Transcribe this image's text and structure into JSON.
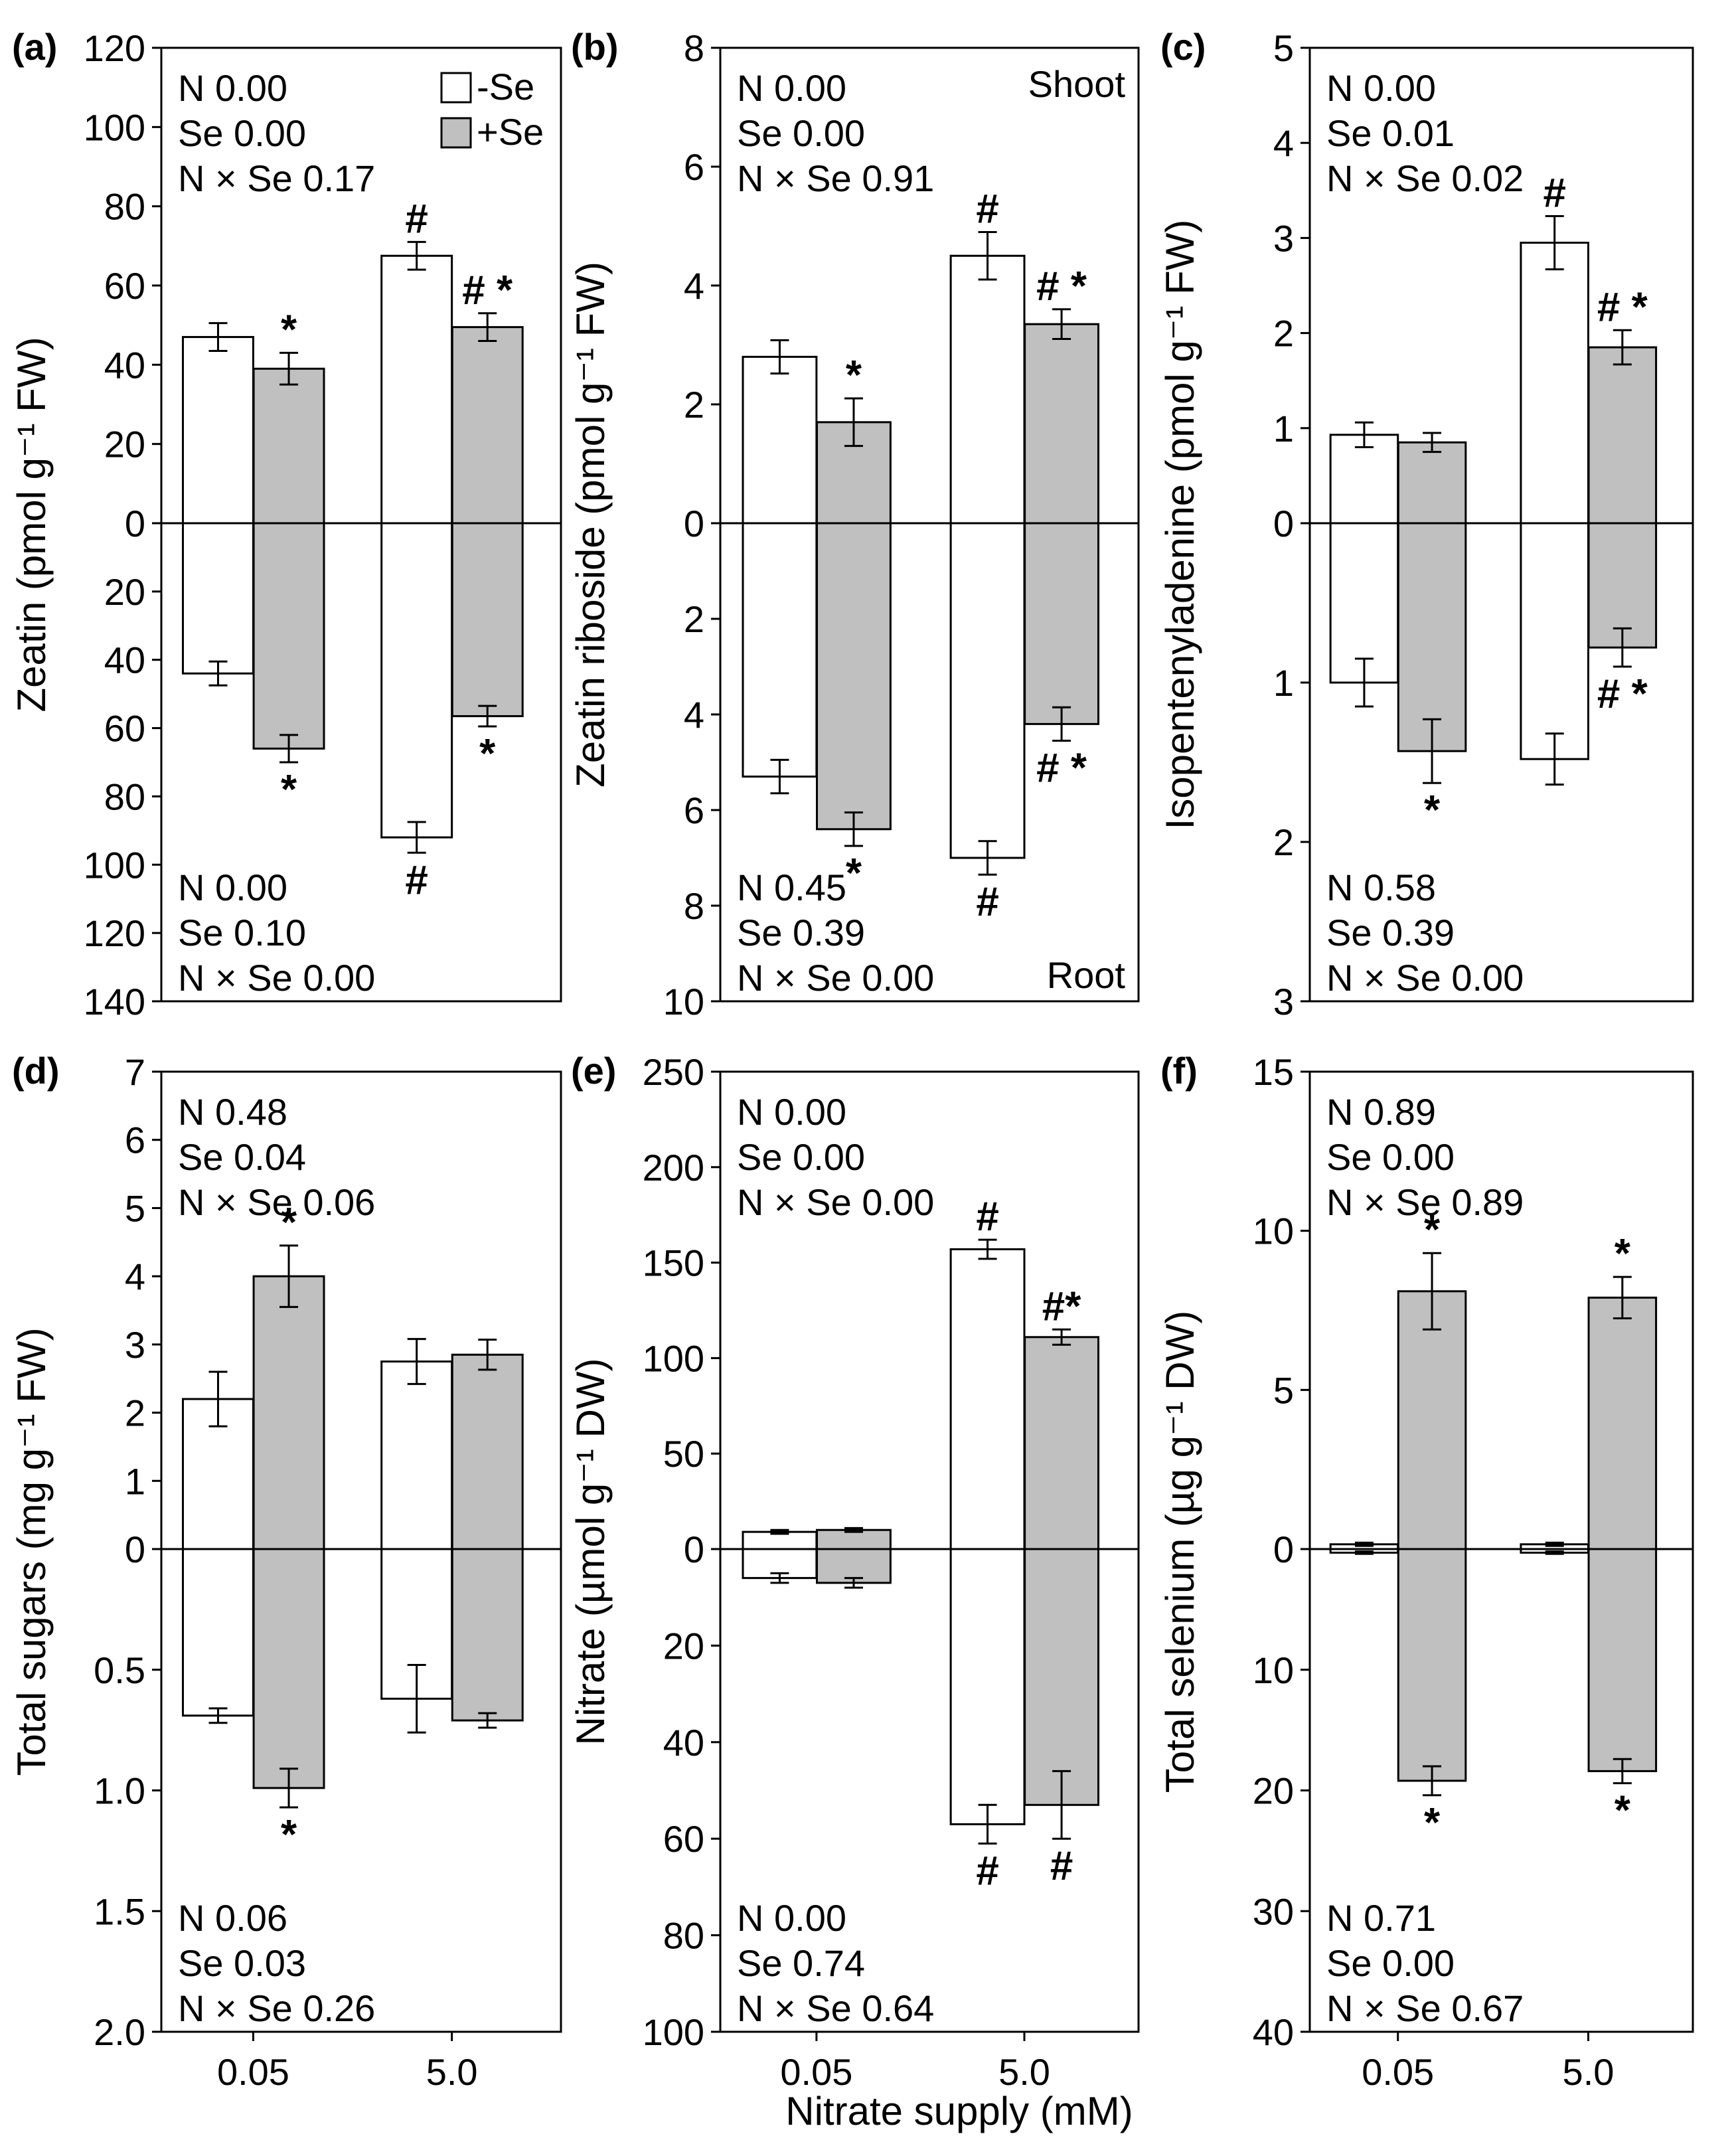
{
  "legend": {
    "items": [
      {
        "label": "-Se",
        "color": "#ffffff"
      },
      {
        "label": "+Se",
        "color": "#c0c0c0"
      }
    ]
  },
  "shared_xlabel": "Nitrate supply (mM)",
  "chart_data": [
    {
      "id": "a",
      "panel_label": "(a)",
      "type": "bar",
      "categories": [
        "0.05",
        "5.0"
      ],
      "ylabel": "Zeatin (pmol g⁻¹ FW)",
      "top": {
        "ylim": [
          0,
          120
        ],
        "ticks": [
          0,
          20,
          40,
          60,
          80,
          100,
          120
        ],
        "series": [
          {
            "name": "-Se",
            "values": [
              47,
              67.5
            ],
            "errors": [
              3.5,
              3.5
            ],
            "marks": [
              "",
              "#"
            ]
          },
          {
            "name": "+Se",
            "values": [
              39,
              49.5
            ],
            "errors": [
              4,
              3.5
            ],
            "marks": [
              "*",
              "# *"
            ]
          }
        ],
        "stats": [
          "N 0.00",
          "Se 0.00",
          "N × Se 0.17"
        ]
      },
      "bottom": {
        "ylim": [
          0,
          140
        ],
        "ticks": [
          20,
          40,
          60,
          80,
          100,
          120,
          140
        ],
        "series": [
          {
            "name": "-Se",
            "values": [
              44,
              92
            ],
            "errors": [
              3.5,
              4.5
            ],
            "marks": [
              "",
              "#"
            ]
          },
          {
            "name": "+Se",
            "values": [
              66,
              56.5
            ],
            "errors": [
              4,
              3
            ],
            "marks": [
              "*",
              "*"
            ]
          }
        ],
        "stats": [
          "N 0.00",
          "Se 0.10",
          "N × Se 0.00"
        ]
      }
    },
    {
      "id": "b",
      "panel_label": "(b)",
      "type": "bar",
      "categories": [
        "0.05",
        "5.0"
      ],
      "ylabel": "Zeatin riboside (pmol g⁻¹ FW)",
      "corner_labels": {
        "top": "Shoot",
        "bottom": "Root"
      },
      "top": {
        "ylim": [
          0,
          8
        ],
        "ticks": [
          0,
          2,
          4,
          6,
          8
        ],
        "series": [
          {
            "name": "-Se",
            "values": [
              2.8,
              4.5
            ],
            "errors": [
              0.28,
              0.4
            ],
            "marks": [
              "",
              "#"
            ]
          },
          {
            "name": "+Se",
            "values": [
              1.7,
              3.35
            ],
            "errors": [
              0.4,
              0.25
            ],
            "marks": [
              "*",
              "# *"
            ]
          }
        ],
        "stats": [
          "N 0.00",
          "Se 0.00",
          "N × Se 0.91"
        ]
      },
      "bottom": {
        "ylim": [
          0,
          10
        ],
        "ticks": [
          2,
          4,
          6,
          8,
          10
        ],
        "series": [
          {
            "name": "-Se",
            "values": [
              5.3,
              7.0
            ],
            "errors": [
              0.35,
              0.35
            ],
            "marks": [
              "",
              "#"
            ]
          },
          {
            "name": "+Se",
            "values": [
              6.4,
              4.2
            ],
            "errors": [
              0.35,
              0.35
            ],
            "marks": [
              "*",
              "# *"
            ]
          }
        ],
        "stats": [
          "N 0.45",
          "Se 0.39",
          "N × Se 0.00"
        ]
      }
    },
    {
      "id": "c",
      "panel_label": "(c)",
      "type": "bar",
      "categories": [
        "0.05",
        "5.0"
      ],
      "ylabel": "Isopentenyladenine (pmol g⁻¹ FW)",
      "top": {
        "ylim": [
          0,
          5
        ],
        "ticks": [
          0,
          1,
          2,
          3,
          4,
          5
        ],
        "series": [
          {
            "name": "-Se",
            "values": [
              0.93,
              2.95
            ],
            "errors": [
              0.13,
              0.28
            ],
            "marks": [
              "",
              "#"
            ]
          },
          {
            "name": "+Se",
            "values": [
              0.85,
              1.85
            ],
            "errors": [
              0.1,
              0.18
            ],
            "marks": [
              "",
              "# *"
            ]
          }
        ],
        "stats": [
          "N 0.00",
          "Se 0.01",
          "N × Se 0.02"
        ]
      },
      "bottom": {
        "ylim": [
          0,
          3
        ],
        "ticks": [
          1,
          2,
          3
        ],
        "series": [
          {
            "name": "-Se",
            "values": [
              1.0,
              1.48
            ],
            "errors": [
              0.15,
              0.16
            ],
            "marks": [
              "",
              ""
            ]
          },
          {
            "name": "+Se",
            "values": [
              1.43,
              0.78
            ],
            "errors": [
              0.2,
              0.12
            ],
            "marks": [
              "*",
              "# *"
            ]
          }
        ],
        "stats": [
          "N 0.58",
          "Se 0.39",
          "N × Se 0.00"
        ]
      }
    },
    {
      "id": "d",
      "panel_label": "(d)",
      "type": "bar",
      "categories": [
        "0.05",
        "5.0"
      ],
      "ylabel": "Total sugars (mg g⁻¹ FW)",
      "top": {
        "ylim": [
          0,
          7
        ],
        "ticks": [
          0,
          1,
          2,
          3,
          4,
          5,
          6,
          7
        ],
        "series": [
          {
            "name": "-Se",
            "values": [
              2.2,
              2.75
            ],
            "errors": [
              0.4,
              0.33
            ],
            "marks": [
              "",
              ""
            ]
          },
          {
            "name": "+Se",
            "values": [
              4.0,
              2.85
            ],
            "errors": [
              0.45,
              0.22
            ],
            "marks": [
              "*",
              ""
            ]
          }
        ],
        "stats": [
          "N 0.48",
          "Se 0.04",
          "N × Se 0.06"
        ]
      },
      "bottom": {
        "ylim": [
          0,
          2.0
        ],
        "ticks": [
          0.5,
          1.0,
          1.5,
          2.0
        ],
        "tick_labels": [
          "0.5",
          "1.0",
          "1.5",
          "2.0"
        ],
        "series": [
          {
            "name": "-Se",
            "values": [
              0.69,
              0.62
            ],
            "errors": [
              0.03,
              0.14
            ],
            "marks": [
              "",
              ""
            ]
          },
          {
            "name": "+Se",
            "values": [
              0.99,
              0.71
            ],
            "errors": [
              0.08,
              0.03
            ],
            "marks": [
              "*",
              ""
            ]
          }
        ],
        "stats": [
          "N 0.06",
          "Se 0.03",
          "N × Se 0.26"
        ]
      }
    },
    {
      "id": "e",
      "panel_label": "(e)",
      "type": "bar",
      "categories": [
        "0.05",
        "5.0"
      ],
      "ylabel": "Nitrate (µmol g⁻¹ DW)",
      "top": {
        "ylim": [
          0,
          250
        ],
        "ticks": [
          0,
          50,
          100,
          150,
          200,
          250
        ],
        "series": [
          {
            "name": "-Se",
            "values": [
              9,
              157
            ],
            "errors": [
              1,
              5
            ],
            "marks": [
              "",
              "#"
            ]
          },
          {
            "name": "+Se",
            "values": [
              10,
              111
            ],
            "errors": [
              1,
              4
            ],
            "marks": [
              "",
              "#*"
            ]
          }
        ],
        "stats": [
          "N 0.00",
          "Se 0.00",
          "N × Se 0.00"
        ]
      },
      "bottom": {
        "ylim": [
          0,
          100
        ],
        "ticks": [
          20,
          40,
          60,
          80,
          100
        ],
        "series": [
          {
            "name": "-Se",
            "values": [
              6,
              57
            ],
            "errors": [
              1,
              4
            ],
            "marks": [
              "",
              "#"
            ]
          },
          {
            "name": "+Se",
            "values": [
              7,
              53
            ],
            "errors": [
              1,
              7
            ],
            "marks": [
              "",
              "#"
            ]
          }
        ],
        "stats": [
          "N 0.00",
          "Se 0.74",
          "N × Se 0.64"
        ]
      }
    },
    {
      "id": "f",
      "panel_label": "(f)",
      "type": "bar",
      "categories": [
        "0.05",
        "5.0"
      ],
      "ylabel": "Total selenium (µg g⁻¹ DW)",
      "top": {
        "ylim": [
          0,
          15
        ],
        "ticks": [
          0,
          5,
          10,
          15
        ],
        "series": [
          {
            "name": "-Se",
            "values": [
              0.15,
              0.15
            ],
            "errors": [
              0.05,
              0.05
            ],
            "marks": [
              "",
              ""
            ]
          },
          {
            "name": "+Se",
            "values": [
              8.1,
              7.9
            ],
            "errors": [
              1.2,
              0.65
            ],
            "marks": [
              "*",
              "*"
            ]
          }
        ],
        "stats": [
          "N 0.89",
          "Se 0.00",
          "N × Se 0.89"
        ]
      },
      "bottom": {
        "ylim": [
          0,
          40
        ],
        "ticks": [
          10,
          20,
          30,
          40
        ],
        "series": [
          {
            "name": "-Se",
            "values": [
              0.3,
              0.3
            ],
            "errors": [
              0.1,
              0.1
            ],
            "marks": [
              "",
              ""
            ]
          },
          {
            "name": "+Se",
            "values": [
              19.2,
              18.4
            ],
            "errors": [
              1.2,
              1.0
            ],
            "marks": [
              "*",
              "*"
            ]
          }
        ],
        "stats": [
          "N 0.71",
          "Se 0.00",
          "N × Se 0.67"
        ]
      }
    }
  ]
}
